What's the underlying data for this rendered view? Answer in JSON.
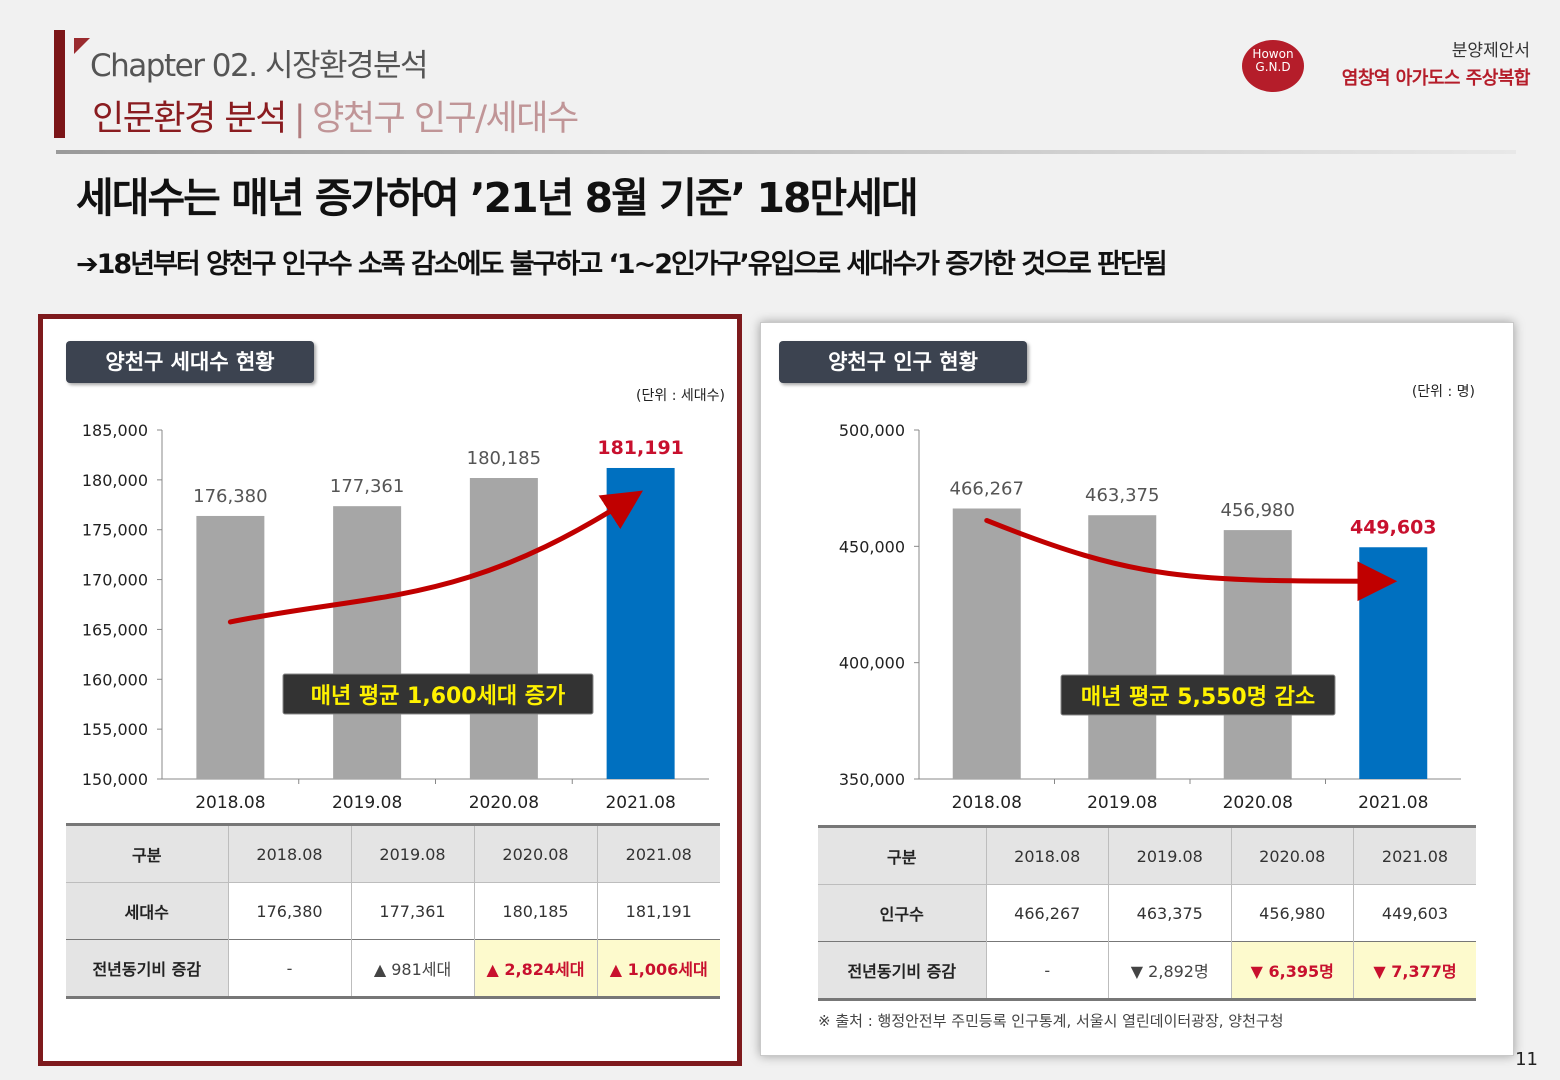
{
  "header": {
    "chapter": "Chapter 02. 시장환경분석",
    "section": "인문환경 분석",
    "separator": "|",
    "subsection": "양천구 인구/세대수",
    "logo_line1": "Howon",
    "logo_line2": "G.N.D",
    "doc_type": "분양제안서",
    "doc_name": "염창역 아가도스 주상복합"
  },
  "headline": "세대수는 매년 증가하여 ’21년 8월 기준’ 18만세대",
  "subline": "➔18년부터 양천구 인구수 소폭 감소에도 불구하고 ‘1~2인가구’유입으로 세대수가 증가한 것으로 판단됨",
  "left_panel": {
    "title": "양천구 세대수 현황",
    "unit": "(단위 : 세대수)",
    "annotation": "매년 평균 1,600세대 증가",
    "table": {
      "header": [
        "구분",
        "2018.08",
        "2019.08",
        "2020.08",
        "2021.08"
      ],
      "row1": [
        "세대수",
        "176,380",
        "177,361",
        "180,185",
        "181,191"
      ],
      "row2": [
        "전년동기비 증감",
        "-",
        "▲ 981세대",
        "▲ 2,824세대",
        "▲ 1,006세대"
      ]
    }
  },
  "right_panel": {
    "title": "양천구 인구 현황",
    "unit": "(단위 : 명)",
    "annotation": "매년 평균 5,550명 감소",
    "table": {
      "header": [
        "구분",
        "2018.08",
        "2019.08",
        "2020.08",
        "2021.08"
      ],
      "row1": [
        "인구수",
        "466,267",
        "463,375",
        "456,980",
        "449,603"
      ],
      "row2": [
        "전년동기비 증감",
        "-",
        "▼ 2,892명",
        "▼ 6,395명",
        "▼ 7,377명"
      ]
    }
  },
  "source": "※ 출처 : 행정안전부 주민등록 인구통계, 서울시 열린데이터광장, 양천구청",
  "page_number": "11",
  "colors": {
    "accent": "#7e1a1d",
    "bar_gray": "#a6a6a6",
    "bar_blue": "#0070c0",
    "highlight_red": "#c8102e",
    "trend_red": "#c00000"
  },
  "chart_data": [
    {
      "type": "bar",
      "title": "양천구 세대수 현황",
      "categories": [
        "2018.08",
        "2019.08",
        "2020.08",
        "2021.08"
      ],
      "values": [
        176380,
        177361,
        180185,
        181191
      ],
      "value_labels": [
        "176,380",
        "177,361",
        "180,185",
        "181,191"
      ],
      "ylim": [
        150000,
        185000
      ],
      "yticks": [
        150000,
        155000,
        160000,
        165000,
        170000,
        175000,
        180000,
        185000
      ],
      "ytick_labels": [
        "150,000",
        "155,000",
        "160,000",
        "165,000",
        "170,000",
        "175,000",
        "180,000",
        "185,000"
      ],
      "highlight_index": 3,
      "trend": "up",
      "grid": false
    },
    {
      "type": "bar",
      "title": "양천구 인구 현황",
      "categories": [
        "2018.08",
        "2019.08",
        "2020.08",
        "2021.08"
      ],
      "values": [
        466267,
        463375,
        456980,
        449603
      ],
      "value_labels": [
        "466,267",
        "463,375",
        "456,980",
        "449,603"
      ],
      "ylim": [
        350000,
        500000
      ],
      "yticks": [
        350000,
        400000,
        450000,
        500000
      ],
      "ytick_labels": [
        "350,000",
        "400,000",
        "450,000",
        "500,000"
      ],
      "highlight_index": 3,
      "trend": "down",
      "grid": false
    }
  ]
}
